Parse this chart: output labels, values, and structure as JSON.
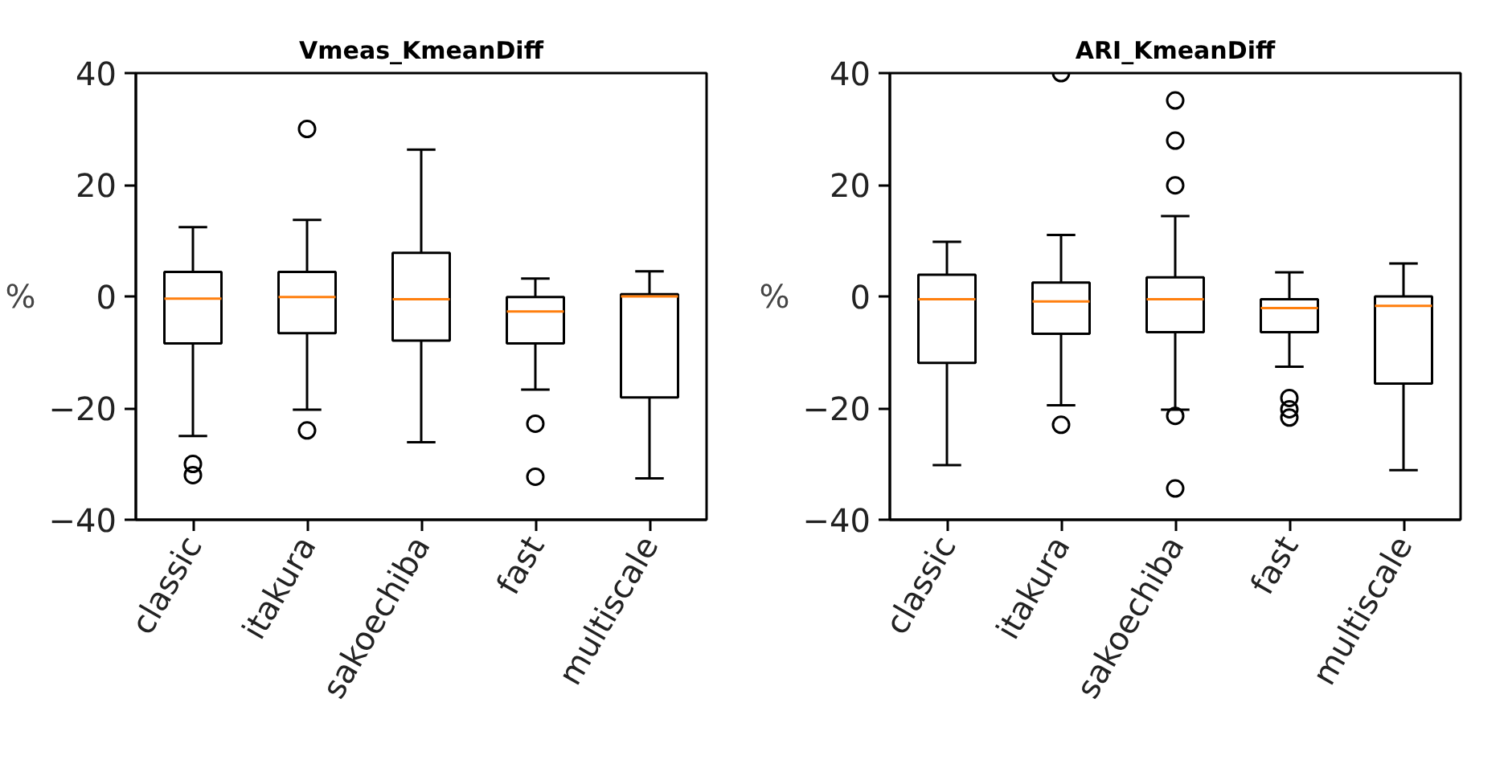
{
  "chart_data": [
    {
      "type": "box",
      "title": "Vmeas_KmeanDiff",
      "ylabel": "%",
      "categories": [
        "classic",
        "itakura",
        "sakoechiba",
        "fast",
        "multiscale"
      ],
      "ylim": [
        -40,
        40
      ],
      "yticks": [
        -40,
        -20,
        0,
        20,
        40
      ],
      "boxes": [
        {
          "low": -25,
          "q1": -8.4,
          "median": -0.4,
          "q3": 4.4,
          "high": 12.4,
          "outliers": [
            -30,
            -32
          ]
        },
        {
          "low": -20.3,
          "q1": -6.6,
          "median": -0.1,
          "q3": 4.4,
          "high": 13.7,
          "outliers": [
            30,
            -24
          ]
        },
        {
          "low": -26.1,
          "q1": -7.9,
          "median": -0.5,
          "q3": 7.8,
          "high": 26.3
        },
        {
          "low": -16.7,
          "q1": -8.4,
          "median": -2.7,
          "q3": -0.1,
          "high": 3.2,
          "outliers": [
            -22.8,
            -32.3
          ]
        },
        {
          "low": -32.6,
          "q1": -18.1,
          "median": 0,
          "q3": 0.4,
          "high": 4.5
        }
      ]
    },
    {
      "type": "box",
      "title": "ARI_KmeanDiff",
      "ylabel": "%",
      "categories": [
        "classic",
        "itakura",
        "sakoechiba",
        "fast",
        "multiscale"
      ],
      "ylim": [
        -40,
        40
      ],
      "yticks": [
        -40,
        -20,
        0,
        20,
        40
      ],
      "boxes": [
        {
          "low": -30.2,
          "q1": -11.9,
          "median": -0.5,
          "q3": 3.9,
          "high": 9.8
        },
        {
          "low": -19.5,
          "q1": -6.7,
          "median": -0.9,
          "q3": 2.5,
          "high": 11,
          "outliers": [
            40,
            -23
          ]
        },
        {
          "low": -20.3,
          "q1": -6.4,
          "median": -0.5,
          "q3": 3.4,
          "high": 14.4,
          "outliers": [
            35.1,
            27.9,
            19.9,
            -21.4,
            -34.4
          ]
        },
        {
          "low": -12.6,
          "q1": -6.4,
          "median": -2.1,
          "q3": -0.5,
          "high": 4.3,
          "outliers": [
            -18.2,
            -20.2,
            -21.7
          ]
        },
        {
          "low": -31.1,
          "q1": -15.6,
          "median": -1.7,
          "q3": 0,
          "high": 5.9
        }
      ]
    }
  ]
}
